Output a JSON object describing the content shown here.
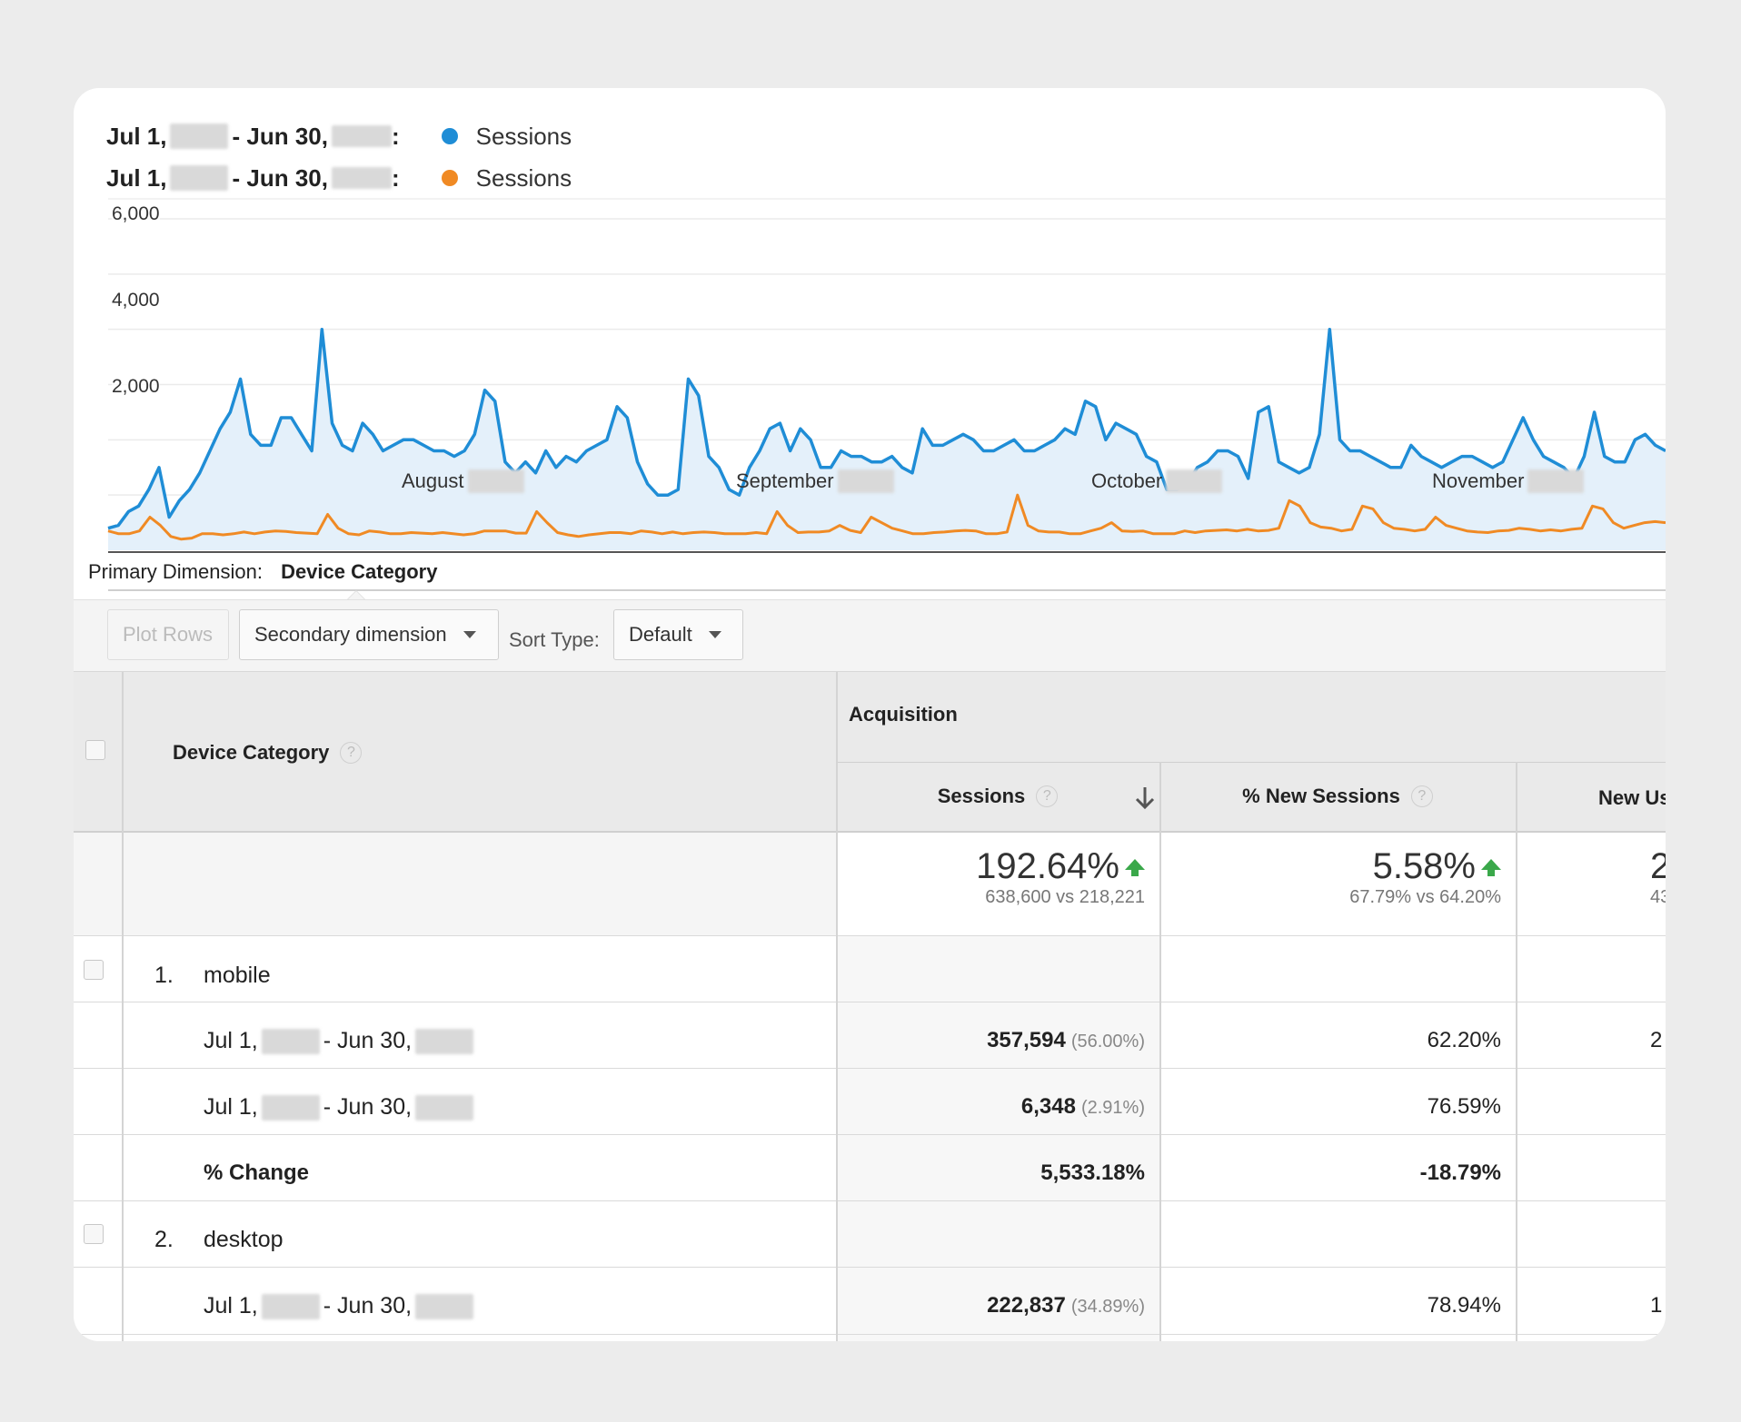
{
  "legend": [
    {
      "label_start": "Jul 1,",
      "label_mid": "- Jun 30,",
      "label_end": ":",
      "series": "Sessions",
      "color": "#1f8dd6"
    },
    {
      "label_start": "Jul 1,",
      "label_mid": "- Jun 30,",
      "label_end": ":",
      "series": "Sessions",
      "color": "#f08a24"
    }
  ],
  "chart_data": {
    "type": "area",
    "y_ticks": [
      "6,000",
      "4,000",
      "2,000"
    ],
    "ylim": [
      0,
      6000
    ],
    "x_ticks": [
      "August",
      "September",
      "October",
      "November"
    ],
    "grid": true,
    "series": [
      {
        "name": "Sessions",
        "color": "#1f8dd6",
        "values": [
          400,
          450,
          700,
          800,
          1100,
          1500,
          600,
          900,
          1100,
          1400,
          1800,
          2200,
          2500,
          3100,
          2100,
          1900,
          1900,
          2400,
          2400,
          2100,
          1800,
          4000,
          2300,
          1900,
          1800,
          2300,
          2100,
          1800,
          1900,
          2000,
          2000,
          1900,
          1800,
          1800,
          1700,
          1800,
          2100,
          2900,
          2700,
          1600,
          1400,
          1600,
          1400,
          1800,
          1500,
          1700,
          1600,
          1800,
          1900,
          2000,
          2600,
          2400,
          1600,
          1200,
          1000,
          1000,
          1100,
          3100,
          2800,
          1700,
          1500,
          1100,
          1000,
          1500,
          1800,
          2200,
          2300,
          1800,
          2200,
          2000,
          1500,
          1500,
          1800,
          1700,
          1700,
          1600,
          1600,
          1700,
          1500,
          1400,
          2200,
          1900,
          1900,
          2000,
          2100,
          2000,
          1800,
          1800,
          1900,
          2000,
          1800,
          1800,
          1900,
          2000,
          2200,
          2100,
          2700,
          2600,
          2000,
          2300,
          2200,
          2100,
          1700,
          1600,
          1100,
          1100,
          1200,
          1500,
          1600,
          1800,
          1800,
          1700,
          1300,
          2500,
          2600,
          1600,
          1500,
          1400,
          1500,
          2100,
          4000,
          2000,
          1800,
          1800,
          1700,
          1600,
          1500,
          1500,
          1900,
          1700,
          1600,
          1500,
          1600,
          1700,
          1700,
          1600,
          1500,
          1600,
          2000,
          2400,
          2000,
          1700,
          1600,
          1500,
          1300,
          1700,
          2500,
          1700,
          1600,
          1600,
          2000,
          2100,
          1900,
          1800
        ]
      },
      {
        "name": "Sessions",
        "color": "#f08a24",
        "values": [
          350,
          300,
          300,
          350,
          600,
          450,
          250,
          200,
          220,
          300,
          300,
          280,
          300,
          330,
          300,
          330,
          350,
          340,
          320,
          310,
          300,
          650,
          400,
          300,
          280,
          350,
          330,
          300,
          300,
          320,
          310,
          300,
          320,
          300,
          280,
          300,
          350,
          350,
          350,
          310,
          310,
          700,
          500,
          320,
          280,
          250,
          280,
          300,
          320,
          320,
          300,
          350,
          330,
          300,
          330,
          300,
          320,
          330,
          320,
          300,
          300,
          300,
          320,
          300,
          700,
          450,
          320,
          330,
          330,
          350,
          450,
          360,
          320,
          600,
          500,
          400,
          350,
          300,
          300,
          320,
          330,
          350,
          360,
          350,
          300,
          300,
          330,
          1000,
          450,
          350,
          330,
          330,
          300,
          300,
          350,
          400,
          500,
          350,
          340,
          350,
          300,
          300,
          300,
          350,
          320,
          350,
          360,
          370,
          350,
          380,
          350,
          360,
          400,
          900,
          800,
          500,
          420,
          400,
          350,
          380,
          800,
          750,
          500,
          400,
          380,
          350,
          380,
          600,
          450,
          400,
          350,
          330,
          320,
          350,
          360,
          400,
          380,
          350,
          370,
          350,
          380,
          400,
          800,
          750,
          500,
          400,
          450,
          500,
          520,
          500
        ]
      }
    ]
  },
  "primary_dimension": {
    "label": "Primary Dimension:",
    "value": "Device Category"
  },
  "toolbar": {
    "plot_rows": "Plot Rows",
    "secondary_dimension": "Secondary dimension",
    "sort_type_label": "Sort Type:",
    "sort_type_value": "Default"
  },
  "table": {
    "group_header": "Acquisition",
    "dim_header": "Device Category",
    "col_sessions": "Sessions",
    "col_new_sessions": "% New Sessions",
    "col_new_users": "New Us",
    "summary": {
      "sessions_change": "192.64%",
      "sessions_compare": "638,600 vs 218,221",
      "new_sessions_change": "5.58%",
      "new_sessions_compare": "67.79% vs 64.20%",
      "new_users_partial": "2",
      "new_users_compare_partial": "43"
    },
    "rows": [
      {
        "index": "1.",
        "name": "mobile"
      },
      {
        "date_start": "Jul 1,",
        "date_mid": "- Jun 30,",
        "sessions": "357,594",
        "sessions_pct": "(56.00%)",
        "new_sessions": "62.20%",
        "new_users_partial": "2"
      },
      {
        "date_start": "Jul 1,",
        "date_mid": "- Jun 30,",
        "sessions": "6,348",
        "sessions_pct": "(2.91%)",
        "new_sessions": "76.59%",
        "new_users_partial": ""
      },
      {
        "label": "% Change",
        "sessions": "5,533.18%",
        "new_sessions": "-18.79%"
      },
      {
        "index": "2.",
        "name": "desktop"
      },
      {
        "date_start": "Jul 1,",
        "date_mid": "- Jun 30,",
        "sessions": "222,837",
        "sessions_pct": "(34.89%)",
        "new_sessions": "78.94%",
        "new_users_partial": "1"
      }
    ]
  }
}
